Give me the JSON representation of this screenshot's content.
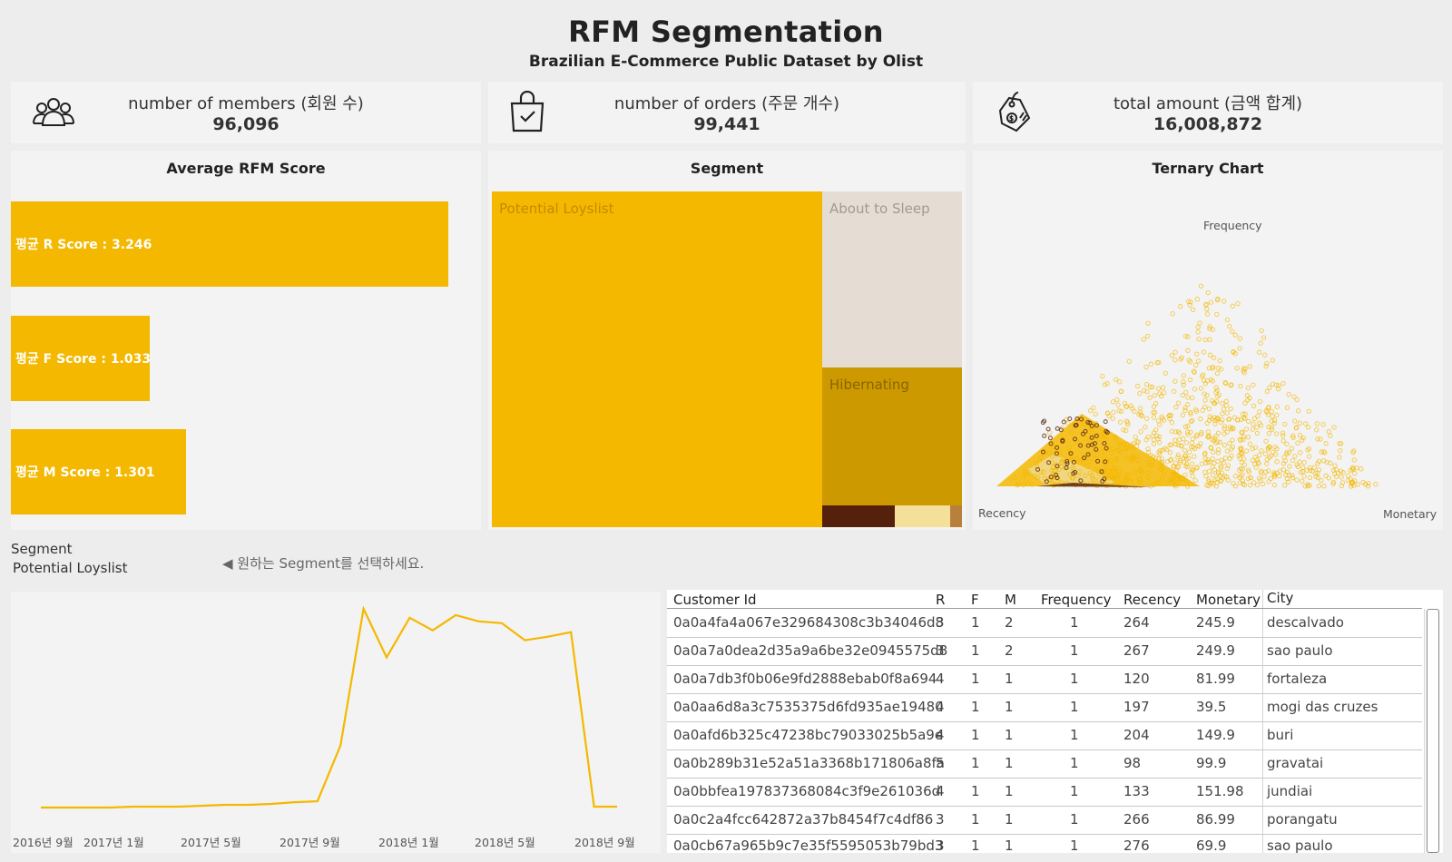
{
  "header": {
    "title": "RFM Segmentation",
    "subtitle": "Brazilian E-Commerce Public Dataset by Olist"
  },
  "kpis": [
    {
      "icon": "members-icon",
      "label": "number of members (회원 수)",
      "value": "96,096"
    },
    {
      "icon": "shopping-bag-icon",
      "label": "number of orders (주문 개수)",
      "value": "99,441"
    },
    {
      "icon": "price-tag-icon",
      "label": "total amount (금액 합계)",
      "value": "16,008,872"
    }
  ],
  "rfm_panel": {
    "title": "Average RFM Score",
    "bars": [
      {
        "label": "평균 R Score : 3.246",
        "value": 3.246
      },
      {
        "label": "평균 F Score : 1.033",
        "value": 1.033
      },
      {
        "label": "평균 M Score : 1.301",
        "value": 1.301
      }
    ],
    "max": 3.33
  },
  "segment_panel": {
    "title": "Segment",
    "labels": [
      "Potential Loyslist",
      "About to Sleep",
      "Hibernating"
    ],
    "colors": [
      "#f4b800",
      "#e5ddd3",
      "#cc9a00",
      "#55210c",
      "#f5e09a",
      "#b8803c"
    ]
  },
  "ternary_panel": {
    "title": "Ternary Chart",
    "axis_labels": {
      "top": "Frequency",
      "left": "Recency",
      "right": "Monetary"
    }
  },
  "filter": {
    "label": "Segment",
    "value": "Potential Loyslist",
    "hint": "◀ 원하는 Segment를 선택하세요."
  },
  "line_chart": {
    "x_ticks": [
      "2016년 9월",
      "2017년 1월",
      "2017년 5월",
      "2017년 9월",
      "2018년 1월",
      "2018년 5월",
      "2018년 9월"
    ]
  },
  "chart_data": {
    "type": "line",
    "color": "#f4b800",
    "x": [
      "2016-09",
      "2016-10",
      "2016-11",
      "2016-12",
      "2017-01",
      "2017-02",
      "2017-03",
      "2017-04",
      "2017-05",
      "2017-06",
      "2017-07",
      "2017-08",
      "2017-09",
      "2017-10",
      "2017-11",
      "2017-12",
      "2018-01",
      "2018-02",
      "2018-03",
      "2018-04",
      "2018-05",
      "2018-06",
      "2018-07",
      "2018-08",
      "2018-09",
      "2018-10"
    ],
    "values": [
      0,
      0,
      0,
      0,
      1,
      1,
      1,
      2,
      3,
      3,
      4,
      6,
      7,
      69,
      221,
      167,
      211,
      197,
      214,
      207,
      205,
      186,
      190,
      195,
      1,
      1
    ],
    "ylim": [
      0,
      230
    ],
    "xlabel": "",
    "ylabel": ""
  },
  "table": {
    "columns": [
      "Customer Id",
      "R",
      "F",
      "M",
      "Frequency",
      "Recency",
      "Monetary",
      "City"
    ],
    "rows": [
      [
        "0a0a4fa4a067e329684308c3b34046d8",
        "3",
        "1",
        "2",
        "1",
        "264",
        "245.9",
        "descalvado"
      ],
      [
        "0a0a7a0dea2d35a9a6be32e0945575d8",
        "3",
        "1",
        "2",
        "1",
        "267",
        "249.9",
        "sao paulo"
      ],
      [
        "0a0a7db3f0b06e9fd2888ebab0f8a694",
        "4",
        "1",
        "1",
        "1",
        "120",
        "81.99",
        "fortaleza"
      ],
      [
        "0a0aa6d8a3c7535375d6fd935ae19480",
        "4",
        "1",
        "1",
        "1",
        "197",
        "39.5",
        "mogi das cruzes"
      ],
      [
        "0a0afd6b325c47238bc79033025b5a9e",
        "4",
        "1",
        "1",
        "1",
        "204",
        "149.9",
        "buri"
      ],
      [
        "0a0b289b31e52a51a3368b171806a8fa",
        "5",
        "1",
        "1",
        "1",
        "98",
        "99.9",
        "gravatai"
      ],
      [
        "0a0bbfea197837368084c3f9e261036d",
        "4",
        "1",
        "1",
        "1",
        "133",
        "151.98",
        "jundiai"
      ],
      [
        "0a0c2a4fcc642872a37b8454f7c4df86",
        "3",
        "1",
        "1",
        "1",
        "266",
        "86.99",
        "porangatu"
      ],
      [
        "0a0cb67a965b9c7e35f5595053b79bd3",
        "3",
        "1",
        "1",
        "1",
        "276",
        "69.9",
        "sao paulo"
      ]
    ]
  }
}
